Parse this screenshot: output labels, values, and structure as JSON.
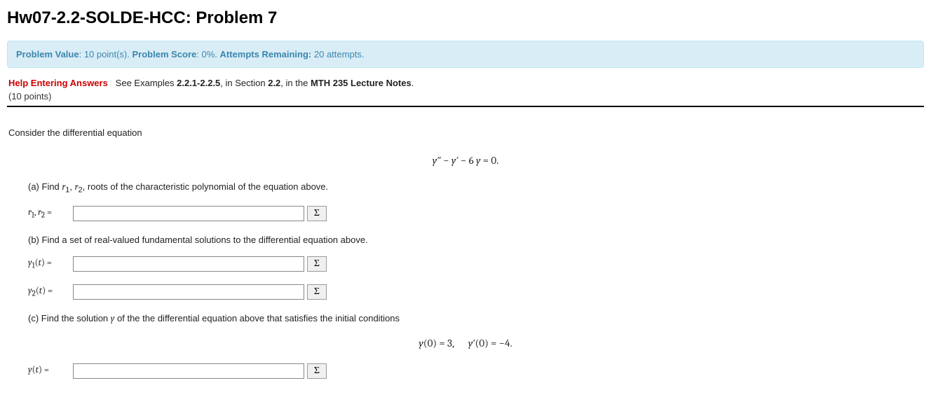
{
  "title": "Hw07-2.2-SOLDE-HCC: Problem 7",
  "status": {
    "problem_value_label": "Problem Value",
    "problem_value": "10 point(s)",
    "problem_score_label": "Problem Score",
    "problem_score": "0%",
    "attempts_remaining_label": "Attempts Remaining:",
    "attempts_remaining": "20 attempts."
  },
  "help": {
    "link_text": "Help Entering Answers",
    "see_text": "See Examples",
    "examples_ref": "2.2.1-2.2.5",
    "section_text": ", in Section ",
    "section_ref": "2.2",
    "notes_text": ", in the ",
    "notes_ref": "MTH 235 Lecture Notes",
    "points_line": "(10 points)"
  },
  "problem": {
    "intro": "Consider the differential equation",
    "main_eqn": "y″ − y′ − 6 y = 0.",
    "part_a_text_pre": "(a) Find ",
    "part_a_r1": "r",
    "part_a_sub1": "1",
    "part_a_comma": ", ",
    "part_a_r2": "r",
    "part_a_sub2": "2",
    "part_a_text_post": ", roots of the characteristic polynomial of the equation above.",
    "part_b_text": "(b) Find a set of real-valued fundamental solutions to the differential equation above.",
    "part_c_text": "(c) Find the solution ",
    "part_c_y": "y",
    "part_c_text_post": " of the the differential equation above that satisfies the initial conditions",
    "ic_eqn": "y(0) = 3,       y′(0) = −4."
  },
  "answers": {
    "a_label_html": "r₁, r₂ =",
    "b1_label": "y₁(t) =",
    "b2_label": "y₂(t) =",
    "c_label": "y(t) =",
    "sigma": "Σ"
  }
}
